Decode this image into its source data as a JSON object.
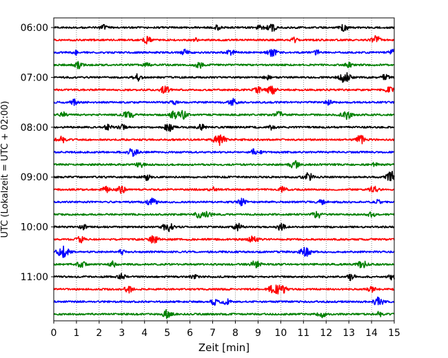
{
  "chart_data": {
    "type": "line",
    "title": "",
    "xlabel": "Zeit  [min]",
    "ylabel": "UTC (Lokalzeit = UTC + 02:00)",
    "xlim": [
      0,
      15
    ],
    "x_ticks": [
      0,
      1,
      2,
      3,
      4,
      5,
      6,
      7,
      8,
      9,
      10,
      11,
      12,
      13,
      14,
      15
    ],
    "y_tick_labels": [
      "06:00",
      "07:00",
      "08:00",
      "09:00",
      "10:00",
      "11:00"
    ],
    "grid": "vertical dotted lines",
    "trace_interval_minutes": 15,
    "first_trace": "06:00",
    "colors_cycle": [
      "#000000",
      "#ff0000",
      "#0000ff",
      "#008000"
    ],
    "traces": [
      {
        "start": "06:00",
        "color": "#000000",
        "events": [
          [
            2.2,
            0.5
          ],
          [
            7.2,
            0.4
          ],
          [
            9.1,
            0.5
          ],
          [
            9.6,
            0.7
          ],
          [
            12.8,
            0.6
          ]
        ]
      },
      {
        "start": "06:15",
        "color": "#ff0000",
        "events": [
          [
            4.1,
            0.6
          ],
          [
            6.2,
            0.4
          ],
          [
            10.6,
            0.4
          ],
          [
            14.2,
            0.7
          ]
        ]
      },
      {
        "start": "06:30",
        "color": "#0000ff",
        "events": [
          [
            1.0,
            0.4
          ],
          [
            5.8,
            0.5
          ],
          [
            7.8,
            0.6
          ],
          [
            9.6,
            0.8
          ],
          [
            11.6,
            0.4
          ],
          [
            15.0,
            0.7
          ]
        ]
      },
      {
        "start": "06:45",
        "color": "#008000",
        "events": [
          [
            1.1,
            0.6
          ],
          [
            4.1,
            0.4
          ],
          [
            6.4,
            0.6
          ],
          [
            13.0,
            0.4
          ]
        ]
      },
      {
        "start": "07:00",
        "color": "#000000",
        "events": [
          [
            3.7,
            0.6
          ],
          [
            9.4,
            0.4
          ],
          [
            12.8,
            1.0
          ],
          [
            14.6,
            0.5
          ]
        ]
      },
      {
        "start": "07:15",
        "color": "#ff0000",
        "events": [
          [
            4.9,
            0.7
          ],
          [
            9.0,
            0.5
          ],
          [
            9.6,
            0.8
          ],
          [
            14.8,
            0.6
          ]
        ]
      },
      {
        "start": "07:30",
        "color": "#0000ff",
        "events": [
          [
            0.9,
            0.5
          ],
          [
            5.3,
            0.4
          ],
          [
            7.9,
            0.6
          ],
          [
            12.1,
            0.4
          ]
        ]
      },
      {
        "start": "07:45",
        "color": "#008000",
        "events": [
          [
            0.4,
            0.5
          ],
          [
            3.3,
            0.8
          ],
          [
            5.3,
            0.7
          ],
          [
            5.7,
            0.7
          ],
          [
            9.9,
            0.6
          ],
          [
            12.9,
            0.8
          ]
        ]
      },
      {
        "start": "08:00",
        "color": "#000000",
        "events": [
          [
            2.4,
            0.5
          ],
          [
            3.0,
            0.5
          ],
          [
            5.1,
            0.8
          ],
          [
            6.5,
            0.5
          ],
          [
            9.6,
            0.4
          ]
        ]
      },
      {
        "start": "08:15",
        "color": "#ff0000",
        "events": [
          [
            0.3,
            0.7
          ],
          [
            7.3,
            1.0
          ],
          [
            13.5,
            0.8
          ]
        ]
      },
      {
        "start": "08:30",
        "color": "#0000ff",
        "events": [
          [
            3.5,
            0.8
          ],
          [
            8.9,
            0.7
          ]
        ]
      },
      {
        "start": "08:45",
        "color": "#008000",
        "events": [
          [
            3.8,
            0.5
          ],
          [
            10.6,
            0.7
          ],
          [
            14.1,
            0.4
          ]
        ]
      },
      {
        "start": "09:00",
        "color": "#000000",
        "events": [
          [
            4.1,
            0.5
          ],
          [
            11.2,
            0.8
          ],
          [
            14.9,
            1.0
          ]
        ]
      },
      {
        "start": "09:15",
        "color": "#ff0000",
        "events": [
          [
            2.3,
            0.5
          ],
          [
            3.0,
            0.7
          ],
          [
            7.0,
            0.4
          ],
          [
            10.1,
            0.5
          ],
          [
            14.1,
            0.6
          ]
        ]
      },
      {
        "start": "09:30",
        "color": "#0000ff",
        "events": [
          [
            4.3,
            0.8
          ],
          [
            8.3,
            0.6
          ],
          [
            11.8,
            0.4
          ],
          [
            14.3,
            0.4
          ]
        ]
      },
      {
        "start": "09:45",
        "color": "#008000",
        "events": [
          [
            6.4,
            0.6
          ],
          [
            6.8,
            0.5
          ],
          [
            11.6,
            0.7
          ],
          [
            14.0,
            0.5
          ]
        ]
      },
      {
        "start": "10:00",
        "color": "#000000",
        "events": [
          [
            1.3,
            0.4
          ],
          [
            5.0,
            0.9
          ],
          [
            8.1,
            0.6
          ],
          [
            10.0,
            0.6
          ]
        ]
      },
      {
        "start": "10:15",
        "color": "#ff0000",
        "events": [
          [
            1.2,
            0.6
          ],
          [
            4.4,
            0.7
          ],
          [
            8.8,
            0.7
          ]
        ]
      },
      {
        "start": "10:30",
        "color": "#0000ff",
        "events": [
          [
            0.4,
            1.0
          ],
          [
            3.0,
            0.4
          ],
          [
            11.1,
            0.9
          ]
        ]
      },
      {
        "start": "10:45",
        "color": "#008000",
        "events": [
          [
            1.2,
            0.6
          ],
          [
            2.6,
            0.5
          ],
          [
            8.9,
            0.7
          ],
          [
            13.6,
            0.7
          ]
        ]
      },
      {
        "start": "11:00",
        "color": "#000000",
        "events": [
          [
            3.0,
            0.5
          ],
          [
            6.2,
            0.4
          ],
          [
            13.1,
            0.6
          ],
          [
            14.9,
            0.5
          ]
        ]
      },
      {
        "start": "11:15",
        "color": "#ff0000",
        "events": [
          [
            3.3,
            0.6
          ],
          [
            9.6,
            0.6
          ],
          [
            10.0,
            1.0
          ],
          [
            14.0,
            0.6
          ]
        ]
      },
      {
        "start": "11:30",
        "color": "#0000ff",
        "events": [
          [
            7.1,
            0.6
          ],
          [
            7.6,
            0.5
          ],
          [
            14.3,
            0.8
          ]
        ]
      },
      {
        "start": "11:45",
        "color": "#008000",
        "events": [
          [
            5.0,
            0.8
          ],
          [
            11.8,
            0.6
          ],
          [
            14.3,
            0.5
          ]
        ]
      }
    ]
  }
}
